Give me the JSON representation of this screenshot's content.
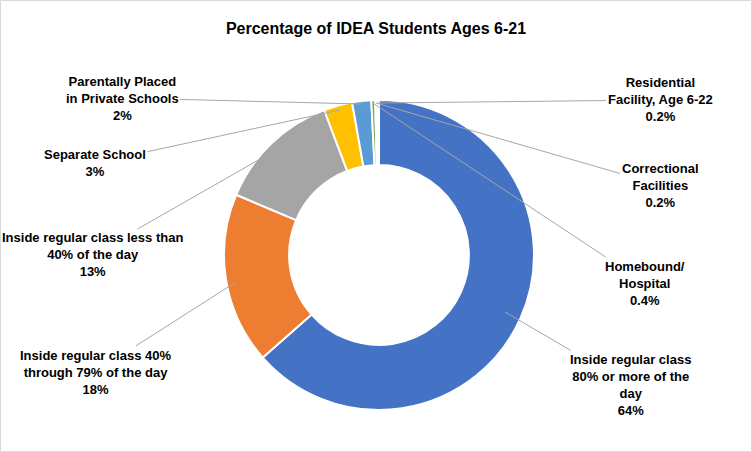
{
  "chart_data": {
    "type": "donut",
    "title": "Percentage of IDEA Students Ages 6-21",
    "categories": [
      "Inside regular class 80% or more of the day",
      "Inside regular class 40% through 79% of the day",
      "Inside regular class less than 40% of the day",
      "Separate School",
      "Parentally Placed in Private Schools",
      "Homebound/Hospital",
      "Correctional Facilities",
      "Residential Facility, Age 6-22"
    ],
    "values": [
      64,
      18,
      13,
      3,
      2,
      0.4,
      0.2,
      0.2
    ],
    "value_labels": [
      "64%",
      "18%",
      "13%",
      "3%",
      "2%",
      "0.4%",
      "0.2%",
      "0.2%"
    ],
    "colors": [
      "#4472c4",
      "#ed7d31",
      "#a5a5a5",
      "#ffc000",
      "#5b9bd5",
      "#70ad47",
      "#264478",
      "#9e480e"
    ],
    "data_labels": true
  }
}
